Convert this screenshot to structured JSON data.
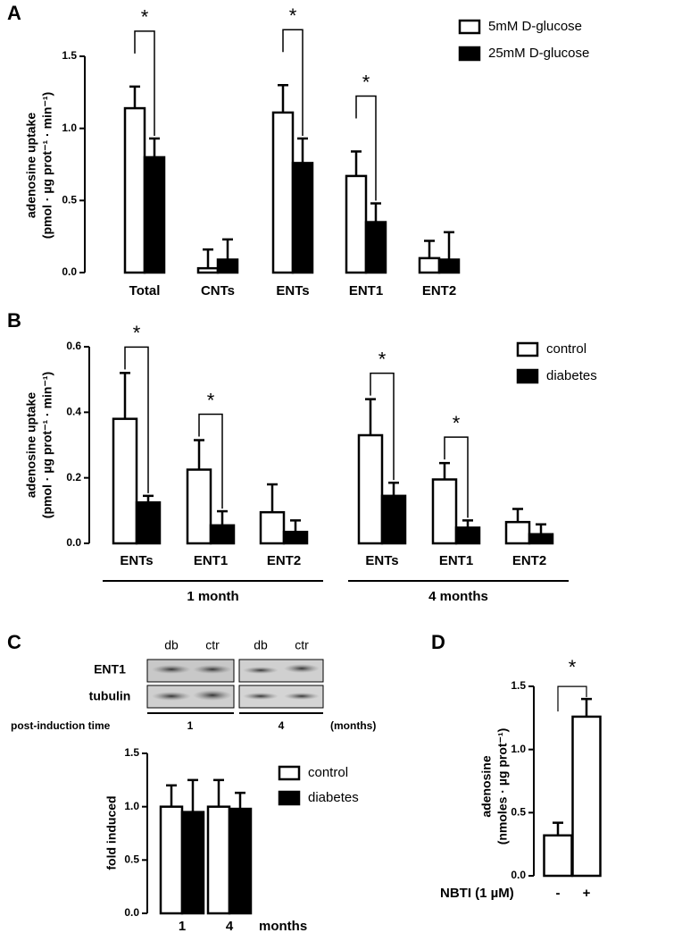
{
  "chart_data": [
    {
      "type": "bar",
      "panel": "A",
      "ylabel": [
        "adenosine uptake",
        "(pmol · µg prot⁻¹ · min⁻¹)"
      ],
      "categories": [
        "Total",
        "CNTs",
        "ENTs",
        "ENT1",
        "ENT2"
      ],
      "series": [
        {
          "name": "5mM D-glucose",
          "color": "#ffffff",
          "values": [
            1.14,
            0.03,
            1.11,
            0.67,
            0.1
          ],
          "errors": [
            0.15,
            0.13,
            0.19,
            0.17,
            0.12
          ]
        },
        {
          "name": "25mM D-glucose",
          "color": "#000000",
          "values": [
            0.8,
            0.09,
            0.76,
            0.35,
            0.09
          ],
          "errors": [
            0.13,
            0.14,
            0.17,
            0.13,
            0.19
          ]
        }
      ],
      "significance": [
        "*",
        null,
        "*",
        "*",
        null
      ],
      "ylim": [
        0,
        1.5
      ],
      "yticks": [
        {
          "value": 0,
          "label": "0.0"
        },
        {
          "value": 0.5,
          "label": "0.5"
        },
        {
          "value": 1,
          "label": "1.0"
        },
        {
          "value": 1.5,
          "label": "1.5"
        }
      ]
    },
    {
      "type": "bar",
      "panel": "B",
      "ylabel": [
        "adenosine uptake",
        "(pmol · µg prot⁻¹ · min⁻¹)"
      ],
      "categories": [
        "ENTs",
        "ENT1",
        "ENT2",
        "ENTs",
        "ENT1",
        "ENT2"
      ],
      "groups": [
        "1 month",
        "4 months"
      ],
      "series": [
        {
          "name": "control",
          "color": "#ffffff",
          "values": [
            0.38,
            0.225,
            0.095,
            0.33,
            0.195,
            0.065
          ],
          "errors": [
            0.14,
            0.09,
            0.085,
            0.11,
            0.05,
            0.04
          ]
        },
        {
          "name": "diabetes",
          "color": "#000000",
          "values": [
            0.125,
            0.055,
            0.035,
            0.145,
            0.048,
            0.028
          ],
          "errors": [
            0.02,
            0.043,
            0.035,
            0.04,
            0.022,
            0.03
          ]
        }
      ],
      "significance": [
        "*",
        "*",
        null,
        "*",
        "*",
        null
      ],
      "ylim": [
        0,
        0.6
      ],
      "yticks": [
        {
          "value": 0,
          "label": "0.0"
        },
        {
          "value": 0.2,
          "label": "0.2"
        },
        {
          "value": 0.4,
          "label": "0.4"
        },
        {
          "value": 0.6,
          "label": "0.6"
        }
      ]
    },
    {
      "type": "bar",
      "panel": "C",
      "blot": {
        "columns": [
          "db",
          "ctr",
          "db",
          "ctr"
        ],
        "rows": [
          "ENT1",
          "tubulin"
        ],
        "time_label": "post-induction time",
        "times": [
          "1",
          "4"
        ],
        "time_unit": "(months)"
      },
      "ylabel": [
        "fold induced"
      ],
      "xlabel": "months",
      "categories": [
        "1",
        "4"
      ],
      "series": [
        {
          "name": "control",
          "color": "#ffffff",
          "values": [
            1.0,
            1.0
          ],
          "errors": [
            0.2,
            0.25
          ]
        },
        {
          "name": "diabetes",
          "color": "#000000",
          "values": [
            0.95,
            0.98
          ],
          "errors": [
            0.3,
            0.15
          ]
        }
      ],
      "ylim": [
        0,
        1.5
      ],
      "yticks": [
        {
          "value": 0,
          "label": "0.0"
        },
        {
          "value": 0.5,
          "label": "0.5"
        },
        {
          "value": 1,
          "label": "1.0"
        },
        {
          "value": 1.5,
          "label": "1.5"
        }
      ]
    },
    {
      "type": "bar",
      "panel": "D",
      "ylabel": [
        "adenosine",
        "(nmoles · µg prot⁻¹)"
      ],
      "xlabel": "NBTI (1 µM)",
      "categories": [
        "-",
        "+"
      ],
      "color": "#ffffff",
      "values": [
        0.32,
        1.26
      ],
      "errors": [
        0.1,
        0.14
      ],
      "significance": "*",
      "ylim": [
        0,
        1.5
      ],
      "yticks": [
        {
          "value": 0,
          "label": "0.0"
        },
        {
          "value": 0.5,
          "label": "0.5"
        },
        {
          "value": 1,
          "label": "1.0"
        },
        {
          "value": 1.5,
          "label": "1.5"
        }
      ]
    }
  ]
}
